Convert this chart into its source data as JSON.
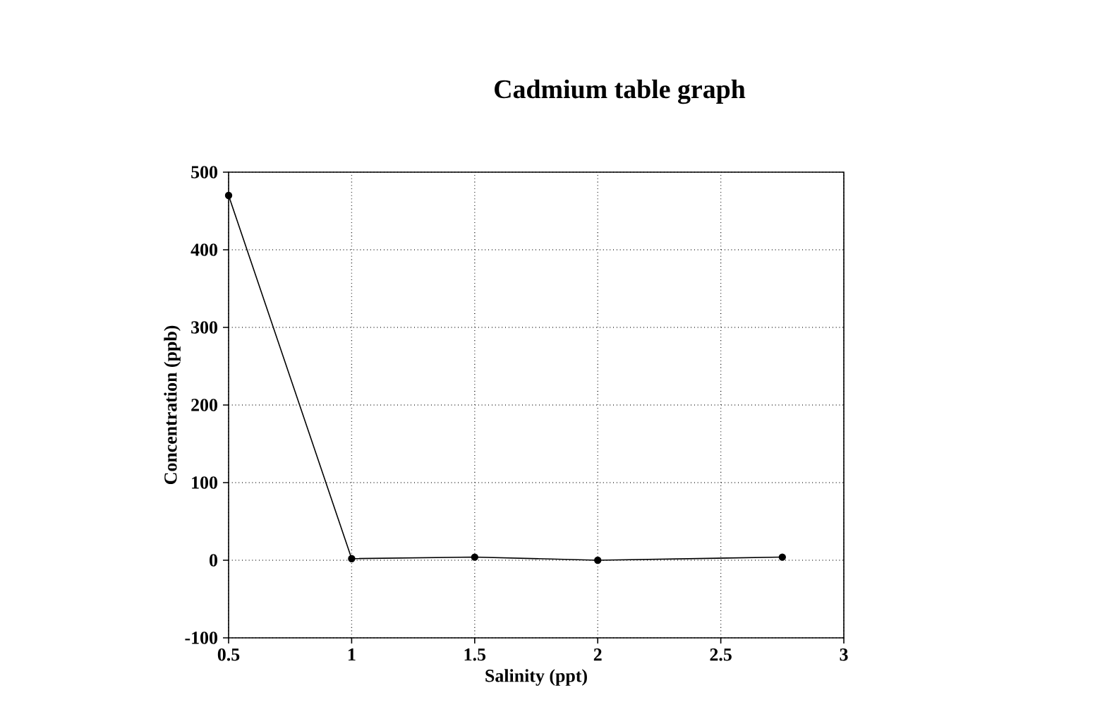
{
  "chart_data": {
    "type": "line",
    "title": "Cadmium table graph",
    "xlabel": "Salinity (ppt)",
    "ylabel": "Concentration (ppb)",
    "x": [
      0.5,
      1,
      1.5,
      2,
      2.75
    ],
    "series": [
      {
        "color": "#000000",
        "values": [
          470,
          2,
          4,
          0,
          4
        ]
      }
    ],
    "xlim": [
      0.5,
      3
    ],
    "xticks": [
      0.5,
      1,
      1.5,
      2,
      2.5,
      3
    ],
    "ylim": [
      -100,
      500
    ],
    "yticks": [
      -100,
      0,
      100,
      200,
      300,
      400,
      500
    ],
    "grid": true,
    "marker": "circle",
    "line_style": "solid"
  }
}
